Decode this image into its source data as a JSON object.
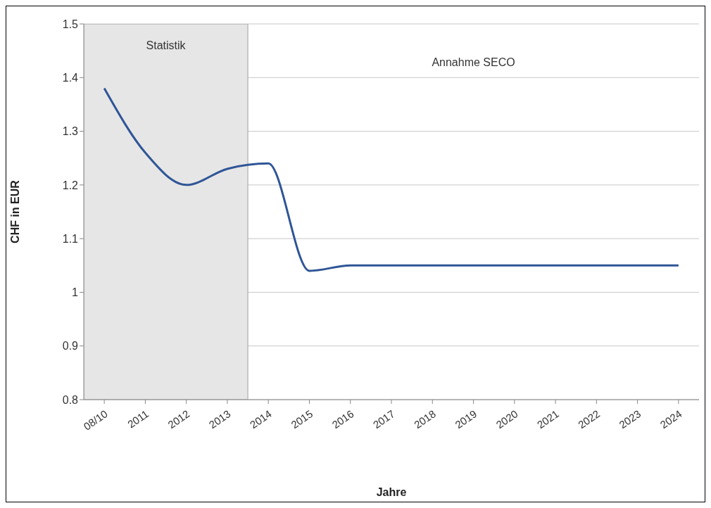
{
  "chart_data": {
    "type": "line",
    "xlabel": "Jahre",
    "ylabel": "CHF in EUR",
    "categories": [
      "08/10",
      "2011",
      "2012",
      "2013",
      "2014",
      "2015",
      "2016",
      "2017",
      "2018",
      "2019",
      "2020",
      "2021",
      "2022",
      "2023",
      "2024"
    ],
    "series": [
      {
        "color": "#2f5597",
        "values": [
          1.38,
          1.26,
          1.2,
          1.23,
          1.24,
          1.04,
          1.05,
          1.05,
          1.05,
          1.05,
          1.05,
          1.05,
          1.05,
          1.05,
          1.05
        ]
      }
    ],
    "ylim": [
      0.8,
      1.5
    ],
    "yticks": [
      0.8,
      0.9,
      1,
      1.1,
      1.2,
      1.3,
      1.4,
      1.5
    ],
    "grid": "y",
    "legend": false,
    "marker": "none",
    "line_style": "solid",
    "bands": [
      {
        "axis": "x",
        "from": "08/10",
        "to": "2013",
        "label": "Statistik",
        "color": "#e6e6e6"
      }
    ],
    "annotations": [
      "Annahme SECO"
    ]
  }
}
